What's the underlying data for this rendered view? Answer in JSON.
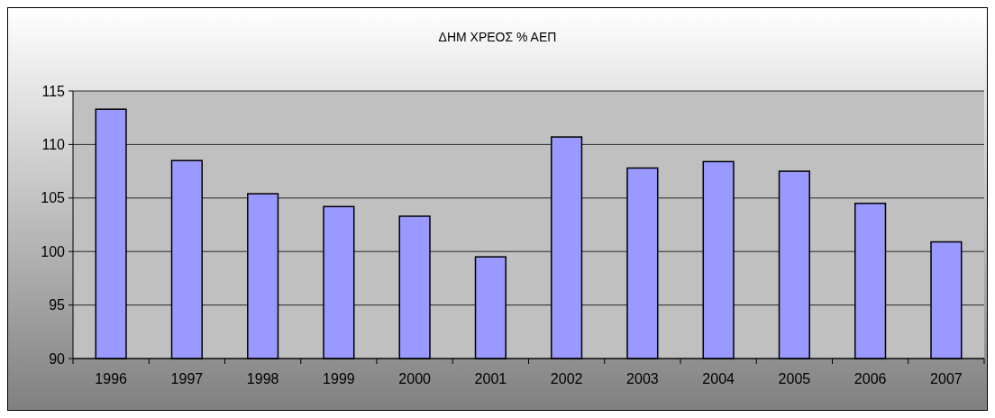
{
  "chart_data": {
    "type": "bar",
    "title": "ΔΗΜ ΧΡΕΟΣ % ΑΕΠ",
    "categories": [
      "1996",
      "1997",
      "1998",
      "1999",
      "2000",
      "2001",
      "2002",
      "2003",
      "2004",
      "2005",
      "2006",
      "2007"
    ],
    "values": [
      113.3,
      108.5,
      105.4,
      104.2,
      103.3,
      99.5,
      110.7,
      107.8,
      108.4,
      107.5,
      104.5,
      100.9
    ],
    "color": "#9999ff",
    "ylim": [
      90,
      115
    ],
    "yticks": [
      90,
      95,
      100,
      105,
      110,
      115
    ],
    "grid": "y"
  }
}
